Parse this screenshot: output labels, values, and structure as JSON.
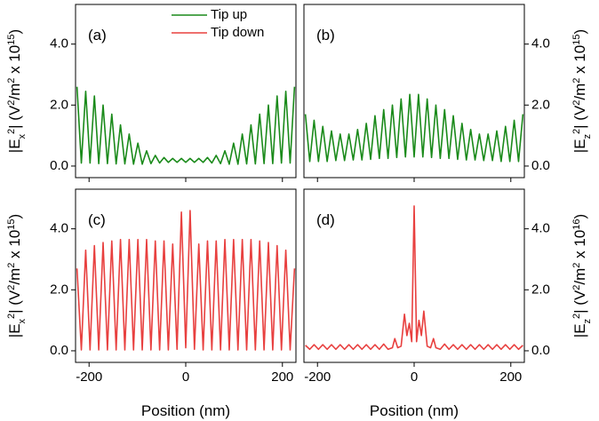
{
  "chart_data": [
    {
      "type": "line",
      "panel_label": "(a)",
      "yaxis_side": "left",
      "xticklabels": false,
      "x": [
        -225,
        -216,
        -207,
        -198,
        -189,
        -180,
        -171,
        -162,
        -153,
        -144,
        -135,
        -126,
        -117,
        -108,
        -99,
        -90,
        -81,
        -72,
        -63,
        -54,
        -45,
        -36,
        -27,
        -18,
        -9,
        0,
        9,
        18,
        27,
        36,
        45,
        54,
        63,
        72,
        81,
        90,
        99,
        108,
        117,
        126,
        135,
        144,
        153,
        162,
        171,
        180,
        189,
        198,
        207,
        216,
        225
      ],
      "series": [
        {
          "name": "Tip up",
          "color": "#1a8a1a",
          "values": [
            2.6,
            0.1,
            2.45,
            0.1,
            2.3,
            0.08,
            2.0,
            0.08,
            1.7,
            0.07,
            1.35,
            0.07,
            1.05,
            0.06,
            0.75,
            0.06,
            0.5,
            0.08,
            0.35,
            0.1,
            0.28,
            0.12,
            0.25,
            0.12,
            0.25,
            0.12,
            0.25,
            0.12,
            0.25,
            0.12,
            0.28,
            0.1,
            0.35,
            0.08,
            0.5,
            0.06,
            0.75,
            0.06,
            1.05,
            0.07,
            1.35,
            0.07,
            1.7,
            0.08,
            2.0,
            0.08,
            2.3,
            0.1,
            2.45,
            0.1,
            2.6
          ]
        }
      ],
      "legend": [
        {
          "name": "Tip up",
          "color": "#1a8a1a"
        },
        {
          "name": "Tip down",
          "color": "#e8403f"
        }
      ],
      "xlim": [
        -228,
        228
      ],
      "xticks": [
        -200,
        0,
        200
      ],
      "ylim": [
        -0.38,
        5.3
      ],
      "yticks": [
        {
          "value": 0,
          "label": "0.0"
        },
        {
          "value": 2,
          "label": "2.0"
        },
        {
          "value": 4,
          "label": "4.0"
        }
      ],
      "ylabel": [
        {
          "text": "|E"
        },
        {
          "text": "x",
          "shift": "sub"
        },
        {
          "text": "2",
          "shift": "sup"
        },
        {
          "text": "|  (V"
        },
        {
          "text": "2",
          "shift": "sup"
        },
        {
          "text": "/m"
        },
        {
          "text": "2",
          "shift": "sup"
        },
        {
          "text": " x 10"
        },
        {
          "text": "15",
          "shift": "sup"
        },
        {
          "text": ")"
        }
      ]
    },
    {
      "type": "line",
      "panel_label": "(b)",
      "yaxis_side": "right",
      "xticklabels": false,
      "x": [
        -225,
        -216,
        -207,
        -198,
        -189,
        -180,
        -171,
        -162,
        -153,
        -144,
        -135,
        -126,
        -117,
        -108,
        -99,
        -90,
        -81,
        -72,
        -63,
        -54,
        -45,
        -36,
        -27,
        -18,
        -9,
        0,
        9,
        18,
        27,
        36,
        45,
        54,
        63,
        72,
        81,
        90,
        99,
        108,
        117,
        126,
        135,
        144,
        153,
        162,
        171,
        180,
        189,
        198,
        207,
        216,
        225
      ],
      "series": [
        {
          "name": "Tip up",
          "color": "#1a8a1a",
          "values": [
            1.7,
            0.15,
            1.5,
            0.15,
            1.3,
            0.15,
            1.15,
            0.18,
            1.05,
            0.18,
            1.05,
            0.2,
            1.2,
            0.2,
            1.4,
            0.22,
            1.65,
            0.25,
            1.85,
            0.25,
            2.0,
            0.28,
            2.2,
            0.3,
            2.35,
            0.3,
            2.35,
            0.3,
            2.2,
            0.28,
            2.0,
            0.25,
            1.85,
            0.25,
            1.65,
            0.22,
            1.4,
            0.2,
            1.2,
            0.2,
            1.05,
            0.18,
            1.05,
            0.18,
            1.15,
            0.15,
            1.3,
            0.15,
            1.5,
            0.15,
            1.7
          ]
        }
      ],
      "xlim": [
        -228,
        228
      ],
      "xticks": [
        -200,
        0,
        200
      ],
      "ylim": [
        -0.38,
        5.3
      ],
      "yticks": [
        {
          "value": 0,
          "label": "0.0"
        },
        {
          "value": 2,
          "label": "2.0"
        },
        {
          "value": 4,
          "label": "4.0"
        }
      ],
      "ylabel": [
        {
          "text": "|E"
        },
        {
          "text": "z",
          "shift": "sub"
        },
        {
          "text": "2",
          "shift": "sup"
        },
        {
          "text": "|  (V"
        },
        {
          "text": "2",
          "shift": "sup"
        },
        {
          "text": "/m"
        },
        {
          "text": "2",
          "shift": "sup"
        },
        {
          "text": " x 10"
        },
        {
          "text": "15",
          "shift": "sup"
        },
        {
          "text": ")"
        }
      ]
    },
    {
      "type": "line",
      "panel_label": "(c)",
      "yaxis_side": "left",
      "xticklabels": true,
      "xlabel": "Position (nm)",
      "x": [
        -225,
        -216,
        -207,
        -198,
        -189,
        -180,
        -171,
        -162,
        -153,
        -144,
        -135,
        -126,
        -117,
        -108,
        -99,
        -90,
        -81,
        -72,
        -63,
        -54,
        -45,
        -36,
        -27,
        -18,
        -9,
        0,
        9,
        18,
        27,
        36,
        45,
        54,
        63,
        72,
        81,
        90,
        99,
        108,
        117,
        126,
        135,
        144,
        153,
        162,
        171,
        180,
        189,
        198,
        207,
        216,
        225
      ],
      "series": [
        {
          "name": "Tip down",
          "color": "#e8403f",
          "values": [
            2.7,
            0.03,
            3.3,
            0.03,
            3.45,
            0.03,
            3.55,
            0.03,
            3.6,
            0.03,
            3.65,
            0.03,
            3.65,
            0.03,
            3.65,
            0.03,
            3.65,
            0.03,
            3.6,
            0.03,
            3.6,
            0.03,
            3.5,
            0.05,
            4.55,
            0.1,
            4.6,
            0.05,
            3.5,
            0.03,
            3.6,
            0.03,
            3.6,
            0.03,
            3.65,
            0.03,
            3.65,
            0.03,
            3.65,
            0.03,
            3.65,
            0.03,
            3.6,
            0.03,
            3.55,
            0.03,
            3.45,
            0.03,
            3.3,
            0.03,
            2.7
          ]
        }
      ],
      "xlim": [
        -228,
        228
      ],
      "xticks": [
        -200,
        0,
        200
      ],
      "ylim": [
        -0.38,
        5.3
      ],
      "yticks": [
        {
          "value": 0,
          "label": "0.0"
        },
        {
          "value": 2,
          "label": "2.0"
        },
        {
          "value": 4,
          "label": "4.0"
        }
      ],
      "ylabel": [
        {
          "text": "|E"
        },
        {
          "text": "x",
          "shift": "sub"
        },
        {
          "text": "2",
          "shift": "sup"
        },
        {
          "text": "|  (V"
        },
        {
          "text": "2",
          "shift": "sup"
        },
        {
          "text": "/m"
        },
        {
          "text": "2",
          "shift": "sup"
        },
        {
          "text": " x 10"
        },
        {
          "text": "15",
          "shift": "sup"
        },
        {
          "text": ")"
        }
      ]
    },
    {
      "type": "line",
      "panel_label": "(d)",
      "yaxis_side": "right",
      "xticklabels": true,
      "xlabel": "Position (nm)",
      "x": [
        -225,
        -216,
        -207,
        -198,
        -189,
        -180,
        -171,
        -162,
        -153,
        -144,
        -135,
        -126,
        -117,
        -108,
        -99,
        -90,
        -81,
        -72,
        -63,
        -54,
        -45,
        -40,
        -34,
        -27,
        -20,
        -15,
        -10,
        -5,
        0,
        5,
        10,
        15,
        20,
        27,
        34,
        40,
        45,
        54,
        63,
        72,
        81,
        90,
        99,
        108,
        117,
        126,
        135,
        144,
        153,
        162,
        171,
        180,
        189,
        198,
        207,
        216,
        225
      ],
      "series": [
        {
          "name": "Tip down",
          "color": "#e8403f",
          "values": [
            0.18,
            0.05,
            0.2,
            0.05,
            0.2,
            0.05,
            0.2,
            0.05,
            0.2,
            0.05,
            0.2,
            0.05,
            0.2,
            0.05,
            0.2,
            0.05,
            0.2,
            0.05,
            0.22,
            0.05,
            0.1,
            0.4,
            0.1,
            0.15,
            1.2,
            0.5,
            0.9,
            0.3,
            4.75,
            0.3,
            1.0,
            0.5,
            1.3,
            0.15,
            0.1,
            0.4,
            0.1,
            0.05,
            0.22,
            0.05,
            0.2,
            0.05,
            0.2,
            0.05,
            0.2,
            0.05,
            0.2,
            0.05,
            0.2,
            0.05,
            0.2,
            0.05,
            0.2,
            0.05,
            0.2,
            0.05,
            0.18
          ]
        }
      ],
      "xlim": [
        -228,
        228
      ],
      "xticks": [
        -200,
        0,
        200
      ],
      "ylim": [
        -0.38,
        5.3
      ],
      "yticks": [
        {
          "value": 0,
          "label": "0.0"
        },
        {
          "value": 2,
          "label": "2.0"
        },
        {
          "value": 4,
          "label": "4.0"
        }
      ],
      "ylabel": [
        {
          "text": "|E"
        },
        {
          "text": "z",
          "shift": "sub"
        },
        {
          "text": "2",
          "shift": "sup"
        },
        {
          "text": "|  (V"
        },
        {
          "text": "2",
          "shift": "sup"
        },
        {
          "text": "/m"
        },
        {
          "text": "2",
          "shift": "sup"
        },
        {
          "text": " x 10"
        },
        {
          "text": "16",
          "shift": "sup"
        },
        {
          "text": ")"
        }
      ]
    }
  ]
}
